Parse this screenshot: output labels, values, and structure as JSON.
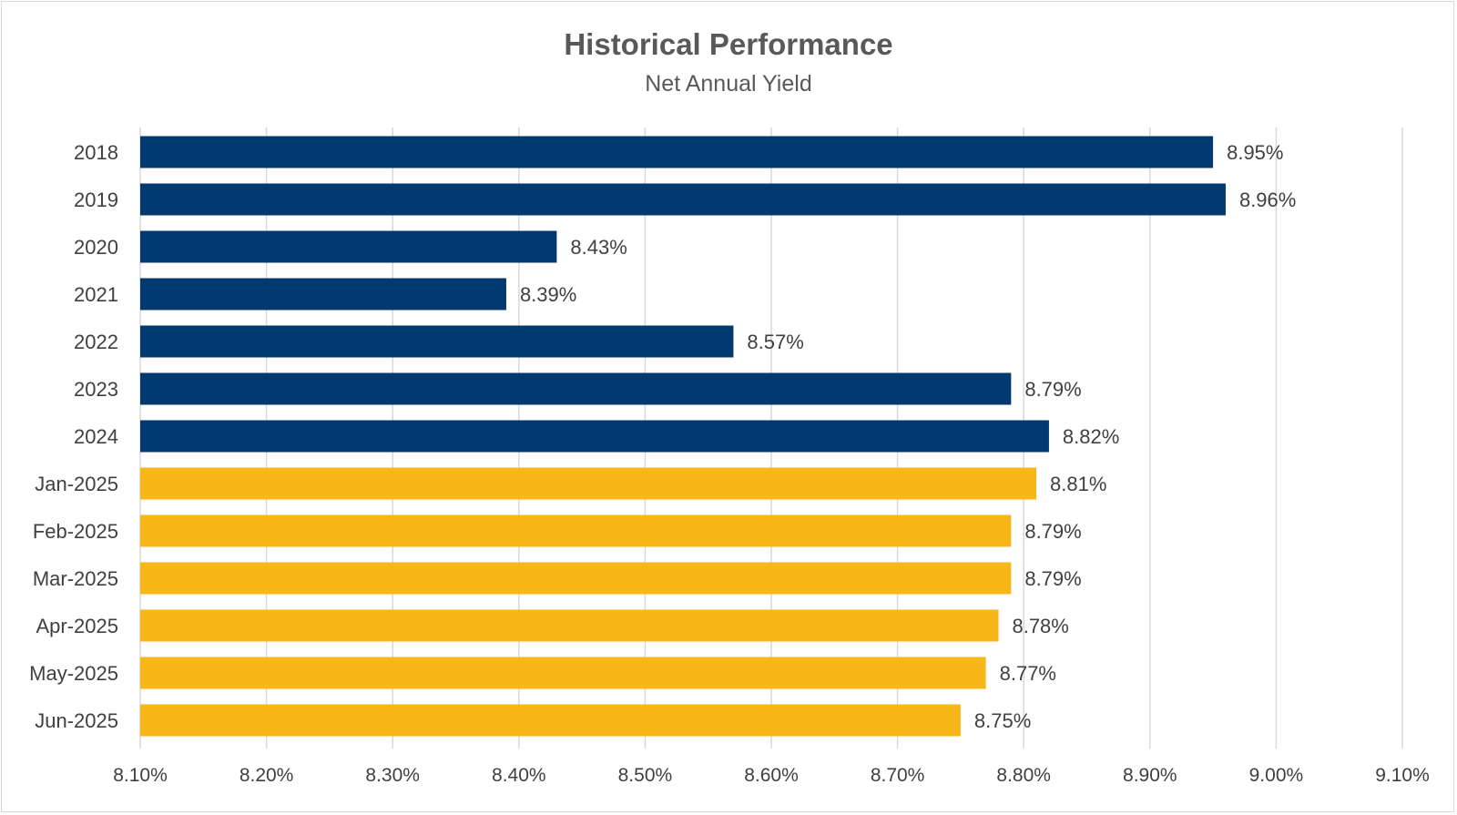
{
  "chart_data": {
    "type": "bar",
    "orientation": "horizontal",
    "title": "Historical Performance",
    "subtitle": "Net Annual Yield",
    "categories": [
      "2018",
      "2019",
      "2020",
      "2021",
      "2022",
      "2023",
      "2024",
      "Jan-2025",
      "Feb-2025",
      "Mar-2025",
      "Apr-2025",
      "May-2025",
      "Jun-2025"
    ],
    "values": [
      8.95,
      8.96,
      8.43,
      8.39,
      8.57,
      8.79,
      8.82,
      8.81,
      8.79,
      8.79,
      8.78,
      8.77,
      8.75
    ],
    "data_labels": [
      "8.95%",
      "8.96%",
      "8.43%",
      "8.39%",
      "8.57%",
      "8.79%",
      "8.82%",
      "8.81%",
      "8.79%",
      "8.79%",
      "8.78%",
      "8.77%",
      "8.75%"
    ],
    "bar_colors": [
      "#003a70",
      "#003a70",
      "#003a70",
      "#003a70",
      "#003a70",
      "#003a70",
      "#003a70",
      "#f8b719",
      "#f8b719",
      "#f8b719",
      "#f8b719",
      "#f8b719",
      "#f8b719"
    ],
    "xlim": [
      8.1,
      9.1
    ],
    "xticks": [
      8.1,
      8.2,
      8.3,
      8.4,
      8.5,
      8.6,
      8.7,
      8.8,
      8.9,
      9.0,
      9.1
    ],
    "xtick_labels": [
      "8.10%",
      "8.20%",
      "8.30%",
      "8.40%",
      "8.50%",
      "8.60%",
      "8.70%",
      "8.80%",
      "8.90%",
      "9.00%",
      "9.10%"
    ],
    "grid": true,
    "legend": "none",
    "gridline_color": "#d9d9d9"
  }
}
